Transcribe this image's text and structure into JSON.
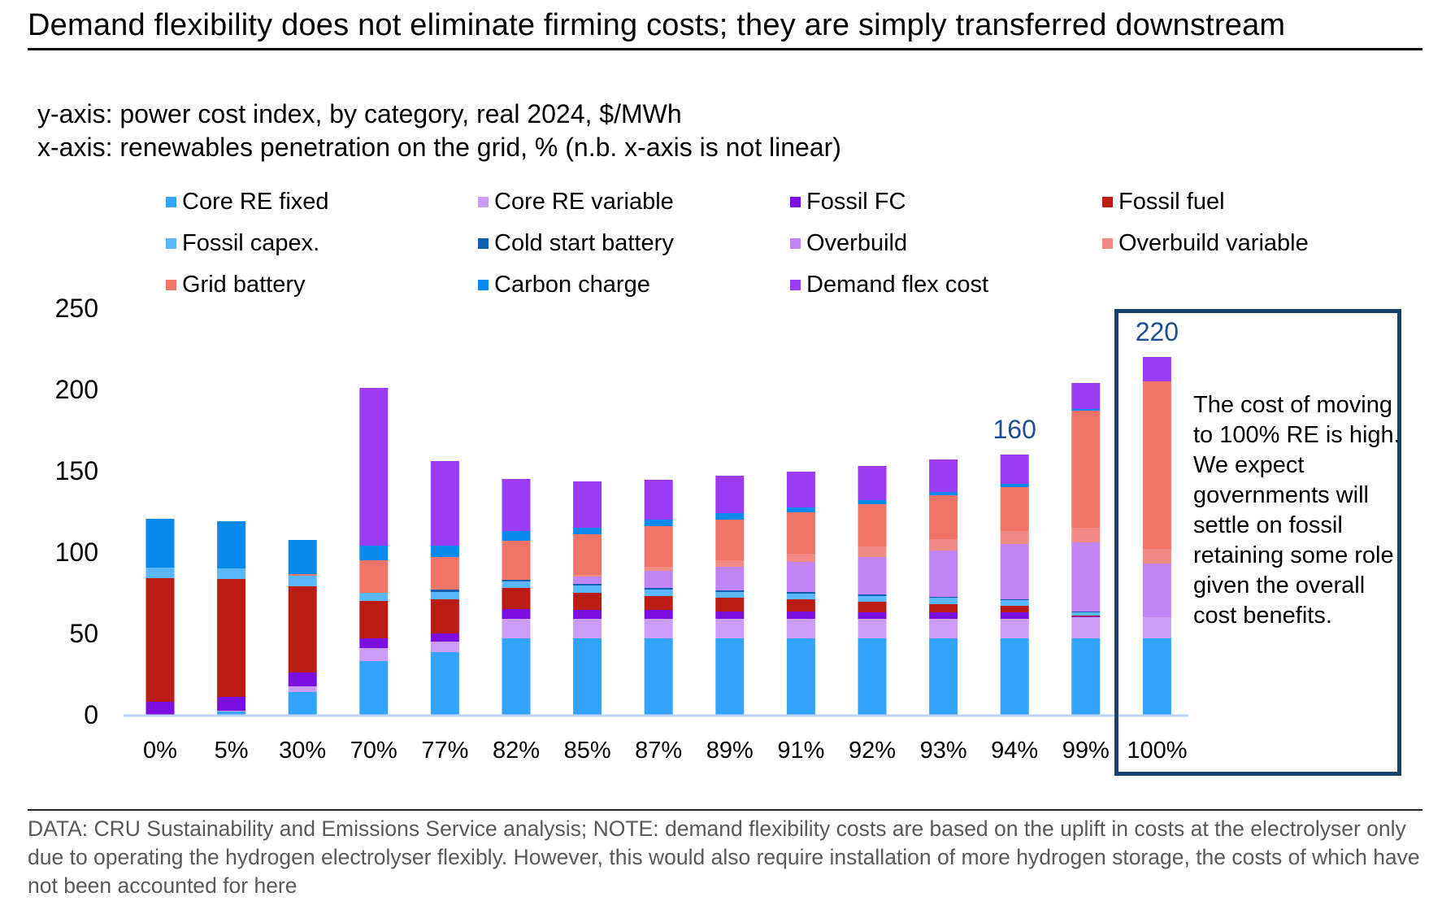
{
  "title": "Demand flexibility does not eliminate firming costs; they are simply transferred downstream",
  "axis_notes": [
    "y-axis: power cost index, by category, real 2024, $/MWh",
    "x-axis: renewables penetration on the grid, % (n.b. x-axis is not linear)"
  ],
  "callout": "The cost of moving to 100% RE is high. We expect governments will settle on fossil retaining some role given the overall cost benefits.",
  "footnote": "DATA: CRU Sustainability and Emissions Service analysis; NOTE: demand flexibility costs are based on the uplift in costs at the electrolyser only due to operating the hydrogen electrolyser flexibly. However, this would also require installation of more hydrogen storage, the costs of which have not been accounted for here",
  "chart_data": {
    "type": "bar",
    "stacked": true,
    "title": "",
    "xlabel": "renewables penetration on the grid, %",
    "ylabel": "power cost index, by category, real 2024, $/MWh",
    "ylim": [
      0,
      250
    ],
    "yticks": [
      0,
      50,
      100,
      150,
      200,
      250
    ],
    "grid": false,
    "legend_position": "top",
    "categories": [
      "0%",
      "5%",
      "30%",
      "70%",
      "77%",
      "82%",
      "85%",
      "87%",
      "89%",
      "91%",
      "92%",
      "93%",
      "94%",
      "99%",
      "100%"
    ],
    "series": [
      {
        "name": "Core RE fixed",
        "color": "#33a3fb",
        "values": [
          0,
          2,
          14,
          33,
          38.5,
          47,
          47,
          47,
          47,
          47,
          47,
          47,
          47,
          47,
          47
        ]
      },
      {
        "name": "Core RE variable",
        "color": "#cc9df8",
        "values": [
          0,
          0.5,
          3.5,
          8,
          6.5,
          12,
          12,
          12,
          12,
          12,
          12,
          12,
          12,
          13,
          13
        ]
      },
      {
        "name": "Fossil FC",
        "color": "#7a0fdf",
        "values": [
          8,
          8.5,
          8.5,
          6,
          5,
          6,
          5.5,
          5.5,
          4.5,
          4.5,
          4,
          4,
          4,
          0.5,
          0
        ]
      },
      {
        "name": "Fossil fuel",
        "color": "#bb1c14",
        "values": [
          76,
          72.5,
          53,
          23,
          21,
          13,
          10.5,
          8.5,
          8.5,
          7.5,
          6.5,
          5,
          4,
          0.5,
          0
        ]
      },
      {
        "name": "Fossil capex.",
        "color": "#5ab6fd",
        "values": [
          6.5,
          6.5,
          6.5,
          5,
          4.5,
          4,
          4.5,
          4,
          3.5,
          3.5,
          3.5,
          4,
          3.5,
          2,
          0
        ]
      },
      {
        "name": "Cold start battery",
        "color": "#0e5fb0",
        "values": [
          0,
          0,
          0,
          0,
          1.5,
          1,
          1,
          1,
          1,
          1,
          1,
          0.5,
          0.5,
          0.5,
          0
        ]
      },
      {
        "name": "Overbuild",
        "color": "#c084f5",
        "values": [
          0,
          0,
          0,
          0,
          0,
          0,
          4.5,
          10.5,
          14.5,
          18.5,
          23,
          28.5,
          34,
          42.5,
          33
        ]
      },
      {
        "name": "Overbuild variable",
        "color": "#f28a86",
        "values": [
          0,
          0,
          0,
          0,
          0,
          0,
          1,
          2.5,
          4,
          5,
          6.5,
          7,
          8,
          9,
          9
        ]
      },
      {
        "name": "Grid battery",
        "color": "#f07468",
        "values": [
          0,
          0,
          1,
          20,
          20,
          24,
          25,
          25,
          25,
          25.5,
          26,
          27,
          27,
          72,
          103
        ]
      },
      {
        "name": "Carbon charge",
        "color": "#0889ec",
        "values": [
          30,
          29,
          21,
          9,
          7,
          6,
          4,
          4,
          4,
          3,
          2.5,
          2,
          2,
          1,
          0
        ]
      },
      {
        "name": "Demand flex cost",
        "color": "#9b3cf4",
        "values": [
          0,
          0,
          0,
          97,
          52,
          32,
          28.5,
          24.5,
          23,
          22,
          21,
          20,
          18,
          16,
          15
        ]
      }
    ],
    "annotations": [
      {
        "category": "94%",
        "text": "160"
      },
      {
        "category": "100%",
        "text": "220"
      }
    ]
  }
}
